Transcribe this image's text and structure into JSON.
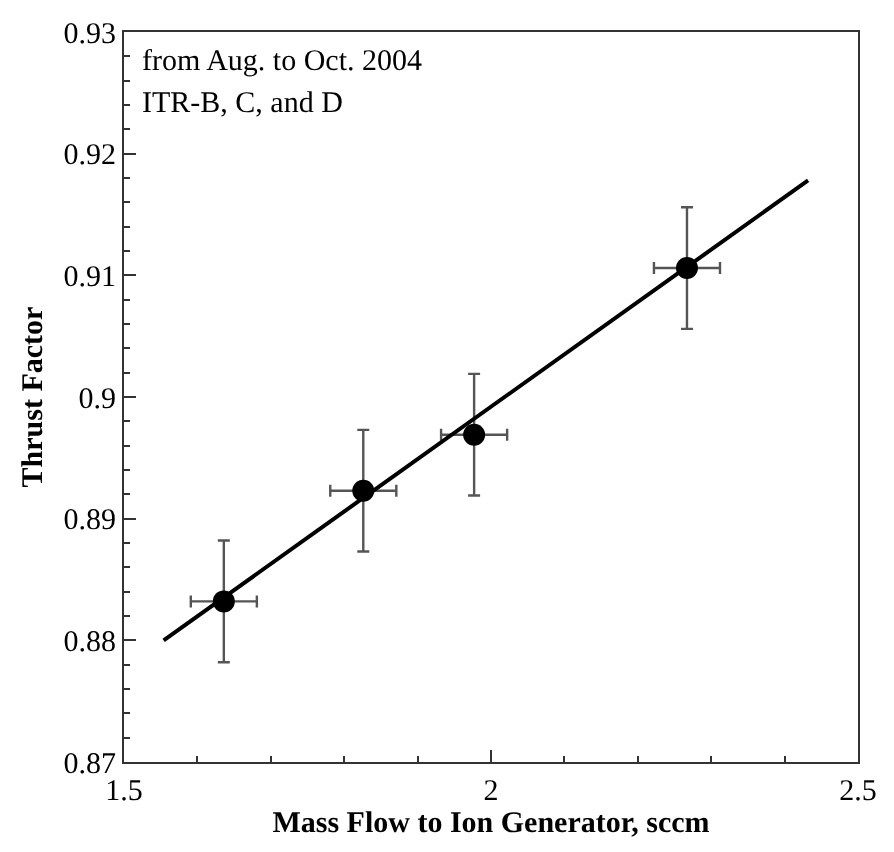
{
  "chart_data": {
    "type": "scatter",
    "xlabel": "Mass Flow to Ion Generator, sccm",
    "ylabel": "Thrust Factor",
    "annotations": [
      "from Aug. to Oct. 2004",
      "ITR-B, C, and D"
    ],
    "xlim": [
      1.5,
      2.5
    ],
    "xticks": [
      1.5,
      2,
      2.5
    ],
    "ylim": [
      0.87,
      0.93
    ],
    "yticks": [
      0.87,
      0.88,
      0.89,
      {
        "value": 0.9,
        "label": "0.9"
      },
      0.91,
      0.92,
      0.93
    ],
    "marker": "circle",
    "series": [
      {
        "color": "#000000",
        "x": [
          1.636,
          1.826,
          1.977,
          2.267
        ],
        "values": [
          0.8832,
          0.8923,
          0.8969,
          0.9106
        ],
        "errors": [
          0.005,
          0.005,
          0.005,
          0.005
        ],
        "xerrors": [
          0.045,
          0.045,
          0.045,
          0.045
        ]
      },
      {
        "type": "line",
        "color": "#000000",
        "line_style": "solid",
        "marker": "none",
        "x": [
          1.554,
          2.432
        ],
        "values": [
          0.88,
          0.9178
        ]
      }
    ]
  }
}
